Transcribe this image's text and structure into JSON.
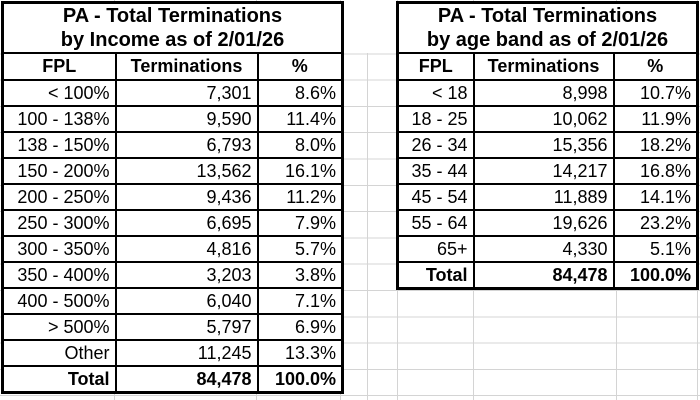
{
  "left_table": {
    "title_line1": "PA - Total Terminations",
    "title_line2": "by Income as of 2/01/26",
    "columns": [
      "FPL",
      "Terminations",
      "%"
    ],
    "rows": [
      [
        "< 100%",
        "7,301",
        "8.6%"
      ],
      [
        "100 - 138%",
        "9,590",
        "11.4%"
      ],
      [
        "138 - 150%",
        "6,793",
        "8.0%"
      ],
      [
        "150 - 200%",
        "13,562",
        "16.1%"
      ],
      [
        "200 - 250%",
        "9,436",
        "11.2%"
      ],
      [
        "250 - 300%",
        "6,695",
        "7.9%"
      ],
      [
        "300 - 350%",
        "4,816",
        "5.7%"
      ],
      [
        "350 - 400%",
        "3,203",
        "3.8%"
      ],
      [
        "400 - 500%",
        "6,040",
        "7.1%"
      ],
      [
        "> 500%",
        "5,797",
        "6.9%"
      ],
      [
        "Other",
        "11,245",
        "13.3%"
      ]
    ],
    "total": [
      "Total",
      "84,478",
      "100.0%"
    ]
  },
  "right_table": {
    "title_line1": "PA - Total Terminations",
    "title_line2": "by age band as of 2/01/26",
    "columns": [
      "FPL",
      "Terminations",
      "%"
    ],
    "rows": [
      [
        "< 18",
        "8,998",
        "10.7%"
      ],
      [
        "18 - 25",
        "10,062",
        "11.9%"
      ],
      [
        "26 - 34",
        "15,356",
        "18.2%"
      ],
      [
        "35 - 44",
        "14,217",
        "16.8%"
      ],
      [
        "45 - 54",
        "11,889",
        "14.1%"
      ],
      [
        "55 - 64",
        "19,626",
        "23.2%"
      ],
      [
        "65+",
        "4,330",
        "5.1%"
      ]
    ],
    "total": [
      "Total",
      "84,478",
      "100.0%"
    ]
  },
  "colors": {
    "table_border": "#000000",
    "gridline": "#d4d4d4",
    "background": "#ffffff",
    "text": "#000000"
  }
}
